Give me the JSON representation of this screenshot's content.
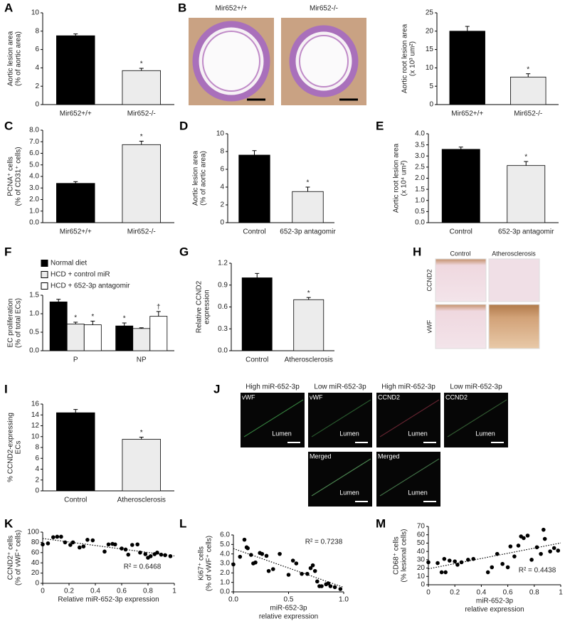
{
  "chart_data": [
    {
      "type": "bar",
      "panel": "A",
      "ylabel": [
        "Aortic lesion area",
        "(% of aortic area)"
      ],
      "categories": [
        "Mir652+/+",
        "Mir652-/-"
      ],
      "values": [
        7.5,
        3.7
      ],
      "errors": [
        0.2,
        0.25
      ],
      "colors": [
        "#000000",
        "#ececec"
      ],
      "sig": [
        null,
        "*"
      ],
      "ylim": [
        0,
        10
      ],
      "yticks": [
        0,
        2,
        4,
        6,
        8,
        10
      ]
    },
    {
      "type": "bar",
      "ylabel": [
        "Aortic root lesion area",
        "(x 10³ um²)"
      ],
      "categories": [
        "Mir652+/+",
        "Mir652-/-"
      ],
      "values": [
        20,
        7.5
      ],
      "errors": [
        1.3,
        0.9
      ],
      "colors": [
        "#000000",
        "#ececec"
      ],
      "sig": [
        null,
        "*"
      ],
      "ylim": [
        0,
        25
      ],
      "yticks": [
        0,
        5,
        10,
        15,
        20,
        25
      ]
    },
    {
      "type": "bar",
      "panel": "C",
      "ylabel": [
        "PCNA⁺ cells",
        "(% of CD31⁺ cells)"
      ],
      "categories": [
        "Mir652+/+",
        "Mir652-/-"
      ],
      "values": [
        3.4,
        6.75
      ],
      "errors": [
        0.15,
        0.3
      ],
      "colors": [
        "#000000",
        "#ececec"
      ],
      "sig": [
        null,
        "*"
      ],
      "ylim": [
        0,
        8
      ],
      "yticks": [
        {
          "value": 0,
          "label": "0.0"
        },
        {
          "value": 1,
          "label": "1.0"
        },
        {
          "value": 2,
          "label": "2.0"
        },
        {
          "value": 3,
          "label": "3.0"
        },
        {
          "value": 4,
          "label": "4.0"
        },
        {
          "value": 5,
          "label": "5.0"
        },
        {
          "value": 6,
          "label": "6.0"
        },
        {
          "value": 7,
          "label": "7.0"
        },
        {
          "value": 8,
          "label": "8.0"
        }
      ]
    },
    {
      "type": "bar",
      "panel": "D",
      "ylabel": [
        "Aortic lesion area",
        "(% of aortic area)"
      ],
      "categories": [
        "Control",
        "652-3p antagomir"
      ],
      "values": [
        7.6,
        3.5
      ],
      "errors": [
        0.5,
        0.5
      ],
      "colors": [
        "#000000",
        "#ececec"
      ],
      "sig": [
        null,
        "*"
      ],
      "ylim": [
        0,
        10
      ],
      "yticks": [
        0,
        2,
        4,
        6,
        8,
        10
      ]
    },
    {
      "type": "bar",
      "panel": "E",
      "ylabel": [
        "Aortic root lesion area",
        "(x 10⁴ um²)"
      ],
      "categories": [
        "Control",
        "652-3p antagomir"
      ],
      "values": [
        3.3,
        2.57
      ],
      "errors": [
        0.1,
        0.18
      ],
      "colors": [
        "#000000",
        "#ececec"
      ],
      "sig": [
        null,
        "*"
      ],
      "ylim": [
        0,
        4
      ],
      "yticks": [
        {
          "value": 0,
          "label": "0.0"
        },
        0.5,
        {
          "value": 1,
          "label": "1.0"
        },
        1.5,
        {
          "value": 2,
          "label": "2.0"
        },
        2.5,
        {
          "value": 3,
          "label": "3.0"
        },
        3.5,
        {
          "value": 4,
          "label": "4.0"
        }
      ]
    },
    {
      "type": "bar",
      "panel": "F",
      "ylabel": [
        "EC proliferation",
        "(% of total ECs)"
      ],
      "categories": [
        "P",
        "NP"
      ],
      "series": [
        {
          "name": "Normal diet",
          "color": "#000000",
          "values": [
            1.32,
            0.67
          ],
          "errors": [
            0.07,
            0.08
          ],
          "sig": [
            null,
            "*"
          ]
        },
        {
          "name": "HCD + control miR",
          "color": "#ececec",
          "values": [
            0.72,
            0.6
          ],
          "errors": [
            0.05,
            0.02
          ],
          "sig": [
            "*",
            null
          ]
        },
        {
          "name": "HCD + 652-3p antagomir",
          "color": "#ffffff",
          "values": [
            0.7,
            0.93
          ],
          "errors": [
            0.1,
            0.13
          ],
          "sig": [
            "*",
            "†"
          ]
        }
      ],
      "ylim": [
        0,
        1.5
      ],
      "yticks": [
        {
          "value": 0,
          "label": "0.0"
        },
        0.5,
        {
          "value": 1,
          "label": "1.0"
        },
        1.5
      ]
    },
    {
      "type": "bar",
      "panel": "G",
      "ylabel": [
        "Relative CCND2",
        "expression"
      ],
      "categories": [
        "Control",
        "Atherosclerosis"
      ],
      "values": [
        1.0,
        0.7
      ],
      "errors": [
        0.06,
        0.03
      ],
      "colors": [
        "#000000",
        "#ececec"
      ],
      "sig": [
        null,
        "*"
      ],
      "ylim": [
        0,
        1.2
      ],
      "yticks": [
        {
          "value": 0,
          "label": "0.0"
        },
        0.3,
        0.6,
        0.9,
        1.2
      ]
    },
    {
      "type": "bar",
      "panel": "I",
      "ylabel": [
        "% CCND2-expressing",
        "ECs"
      ],
      "categories": [
        "Control",
        "Atherosclerosis"
      ],
      "values": [
        14.4,
        9.5
      ],
      "errors": [
        0.6,
        0.4
      ],
      "colors": [
        "#000000",
        "#ececec"
      ],
      "sig": [
        null,
        "*"
      ],
      "ylim": [
        0,
        16
      ],
      "yticks": [
        0,
        2,
        4,
        6,
        8,
        10,
        12,
        14,
        16
      ]
    },
    {
      "type": "scatter",
      "panel": "K",
      "ylabel": [
        "CCND2⁺ cells",
        "(% of vWF⁺ cells)"
      ],
      "xlabel": [
        "Relative miR-652-3p expression"
      ],
      "annotation": "R² = 0.6468",
      "x": [
        0,
        0.04,
        0.08,
        0.11,
        0.14,
        0.17,
        0.21,
        0.23,
        0.28,
        0.31,
        0.34,
        0.38,
        0.47,
        0.5,
        0.53,
        0.55,
        0.6,
        0.63,
        0.65,
        0.68,
        0.72,
        0.74,
        0.78,
        0.8,
        0.82,
        0.85,
        0.87,
        0.9,
        0.93,
        0.97
      ],
      "values": [
        76,
        78,
        90,
        91,
        91,
        80,
        75,
        80,
        70,
        72,
        85,
        84,
        62,
        76,
        77,
        76,
        68,
        66,
        56,
        75,
        76,
        60,
        57,
        50,
        53,
        57,
        60,
        56,
        55,
        53
      ],
      "xlim": [
        0,
        1
      ],
      "xticks": [
        0,
        0.2,
        0.4,
        0.6,
        0.8,
        1
      ],
      "ylim": [
        0,
        100
      ],
      "yticks": [
        0,
        20,
        40,
        60,
        80,
        100
      ]
    },
    {
      "type": "scatter",
      "panel": "L",
      "ylabel": [
        "Ki67⁺ cells",
        "(% of vWF⁺ cells)"
      ],
      "xlabel": [
        "miR-652-3p",
        "relative expression"
      ],
      "annotation": "R² = 0.7238",
      "x": [
        0,
        0.06,
        0.1,
        0.12,
        0.13,
        0.16,
        0.18,
        0.2,
        0.24,
        0.26,
        0.3,
        0.32,
        0.36,
        0.42,
        0.5,
        0.54,
        0.57,
        0.62,
        0.67,
        0.7,
        0.72,
        0.74,
        0.76,
        0.78,
        0.8,
        0.84,
        0.86,
        0.88,
        0.92,
        0.97
      ],
      "values": [
        2.9,
        3.7,
        5.5,
        4.7,
        4.6,
        3.9,
        3.0,
        3.1,
        4.1,
        4.0,
        3.8,
        2.2,
        2.4,
        4.0,
        1.8,
        3.3,
        3.0,
        1.9,
        1.9,
        2.5,
        2.8,
        2.2,
        1.1,
        0.6,
        0.6,
        0.8,
        0.9,
        0.6,
        0.5,
        0.3
      ],
      "xlim": [
        0,
        1
      ],
      "xticks": [
        {
          "value": 0,
          "label": "0.0"
        },
        0.5,
        {
          "value": 1,
          "label": "1.0"
        }
      ],
      "ylim": [
        0,
        6
      ],
      "yticks": [
        {
          "value": 0,
          "label": "0.0"
        },
        {
          "value": 1,
          "label": "1.0"
        },
        {
          "value": 2,
          "label": "2.0"
        },
        {
          "value": 3,
          "label": "3.0"
        },
        {
          "value": 4,
          "label": "4.0"
        },
        {
          "value": 5,
          "label": "5.0"
        },
        {
          "value": 6,
          "label": "6.0"
        }
      ]
    },
    {
      "type": "scatter",
      "panel": "M",
      "ylabel": [
        "CD68⁺ cells",
        "(% lesional cells)"
      ],
      "xlabel": [
        "miR-652-3p",
        "relative expression"
      ],
      "annotation": "R² = 0.4438",
      "x": [
        0,
        0.07,
        0.1,
        0.12,
        0.13,
        0.16,
        0.2,
        0.22,
        0.25,
        0.3,
        0.34,
        0.45,
        0.48,
        0.52,
        0.56,
        0.6,
        0.62,
        0.65,
        0.68,
        0.7,
        0.72,
        0.75,
        0.78,
        0.82,
        0.85,
        0.87,
        0.88,
        0.92,
        0.95,
        0.98
      ],
      "values": [
        27,
        26,
        15,
        31,
        15,
        29,
        28,
        24,
        27,
        30,
        31,
        15,
        21,
        37,
        25,
        21,
        46,
        34,
        47,
        58,
        56,
        59,
        30,
        45,
        37,
        66,
        55,
        40,
        44,
        41
      ],
      "xlim": [
        0,
        1
      ],
      "xticks": [
        0,
        0.2,
        0.4,
        0.6,
        0.8,
        1
      ],
      "ylim": [
        0,
        70
      ],
      "yticks": [
        0,
        10,
        20,
        30,
        40,
        50,
        60,
        70
      ]
    }
  ],
  "micrographs": [
    {
      "panel": "B",
      "columns": [
        "Mir652+/+",
        "Mir652-/-"
      ]
    },
    {
      "panel": "H",
      "columns": [
        "Control",
        "Atherosclerosis"
      ],
      "rows": [
        "CCND2",
        "vWF"
      ]
    },
    {
      "panel": "J",
      "tiles": [
        {
          "title": "High miR-652-3p",
          "label": "vWF",
          "lumen": "Lumen"
        },
        {
          "title": "Low miR-652-3p",
          "label": "vWF",
          "lumen": "Lumen"
        },
        {
          "title": "High miR-652-3p",
          "label": "CCND2",
          "lumen": "Lumen"
        },
        {
          "title": "Low miR-652-3p",
          "label": "CCND2",
          "lumen": "Lumen"
        },
        {
          "label": "Merged",
          "lumen": "Lumen"
        },
        {
          "label": "Merged",
          "lumen": "Lumen"
        }
      ]
    }
  ]
}
